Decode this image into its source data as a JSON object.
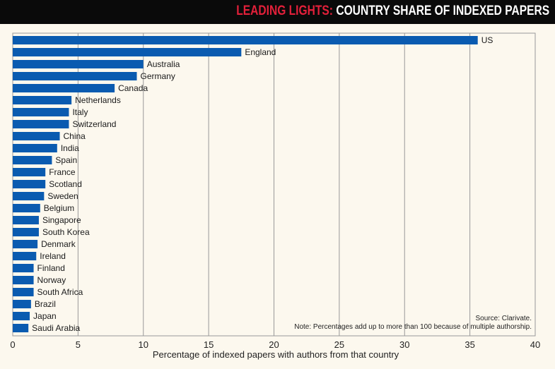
{
  "header": {
    "title_highlight": "LEADING LIGHTS:",
    "title_rest": " COUNTRY SHARE OF INDEXED PAPERS"
  },
  "colors": {
    "bar": "#0a5bb0",
    "title_accent": "#e3203a",
    "background": "#fcf8ee"
  },
  "chart_data": {
    "type": "bar",
    "orientation": "horizontal",
    "title": "LEADING LIGHTS: COUNTRY SHARE OF INDEXED PAPERS",
    "xlabel": "Percentage of indexed papers with authors from that country",
    "ylabel": "",
    "xlim": [
      0,
      40
    ],
    "xticks": [
      0,
      5,
      10,
      15,
      20,
      25,
      30,
      35,
      40
    ],
    "grid": true,
    "categories": [
      "US",
      "England",
      "Australia",
      "Germany",
      "Canada",
      "Netherlands",
      "Italy",
      "Switzerland",
      "China",
      "India",
      "Spain",
      "France",
      "Scotland",
      "Sweden",
      "Belgium",
      "Singapore",
      "South Korea",
      "Denmark",
      "Ireland",
      "Finland",
      "Norway",
      "South Africa",
      "Brazil",
      "Japan",
      "Saudi Arabia"
    ],
    "values": [
      35.6,
      17.5,
      10.0,
      9.5,
      7.8,
      4.5,
      4.3,
      4.3,
      3.6,
      3.4,
      3.0,
      2.5,
      2.5,
      2.4,
      2.1,
      2.0,
      2.0,
      1.9,
      1.8,
      1.6,
      1.6,
      1.6,
      1.4,
      1.3,
      1.2
    ],
    "source": "Source: Clarivate.",
    "note": "Note: Percentages add up to more than 100 because of multiple authorship."
  }
}
